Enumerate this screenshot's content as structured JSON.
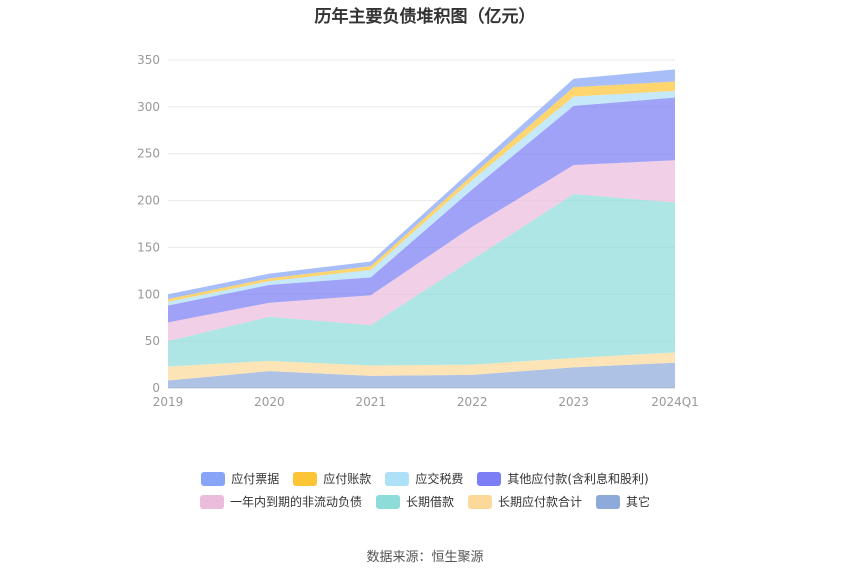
{
  "title": "历年主要负债堆积图（亿元）",
  "source": "数据来源：恒生聚源",
  "chart_data": {
    "type": "area",
    "stacked": true,
    "title": "历年主要负债堆积图（亿元）",
    "x": [
      "2019",
      "2020",
      "2021",
      "2022",
      "2023",
      "2024Q1"
    ],
    "ylim": [
      0,
      350
    ],
    "yticks": [
      0,
      50,
      100,
      150,
      200,
      250,
      300,
      350
    ],
    "grid": true,
    "legend_position": "bottom",
    "series": [
      {
        "name": "其它",
        "color": "#8eaadb",
        "values": [
          8,
          18,
          13,
          14,
          22,
          27
        ]
      },
      {
        "name": "长期应付款合计",
        "color": "#fcd99a",
        "values": [
          15,
          11,
          11,
          11,
          10,
          11
        ]
      },
      {
        "name": "长期借款",
        "color": "#8edcd9",
        "values": [
          27,
          47,
          43,
          112,
          175,
          160
        ]
      },
      {
        "name": "一年内到期的非流动负债",
        "color": "#ecbcdc",
        "values": [
          20,
          15,
          32,
          35,
          31,
          45
        ]
      },
      {
        "name": "其他应付款(含利息和股利)",
        "color": "#7b7ef5",
        "values": [
          18,
          19,
          19,
          40,
          63,
          67
        ]
      },
      {
        "name": "应交税费",
        "color": "#aee0f7",
        "values": [
          4,
          4,
          8,
          10,
          10,
          7
        ]
      },
      {
        "name": "应付账款",
        "color": "#fdc536",
        "values": [
          3,
          3,
          4,
          5,
          10,
          10
        ]
      },
      {
        "name": "应付票据",
        "color": "#86a5f7",
        "values": [
          5,
          5,
          5,
          6,
          9,
          13
        ]
      }
    ]
  },
  "legend": {
    "row1": [
      {
        "label": "应付票据",
        "color": "#86a5f7"
      },
      {
        "label": "应付账款",
        "color": "#fdc536"
      },
      {
        "label": "应交税费",
        "color": "#aee0f7"
      },
      {
        "label": "其他应付款(含利息和股利)",
        "color": "#7b7ef5"
      }
    ],
    "row2": [
      {
        "label": "一年内到期的非流动负债",
        "color": "#ecbcdc"
      },
      {
        "label": "长期借款",
        "color": "#8edcd9"
      },
      {
        "label": "长期应付款合计",
        "color": "#fcd99a"
      },
      {
        "label": "其它",
        "color": "#8eaadb"
      }
    ]
  }
}
